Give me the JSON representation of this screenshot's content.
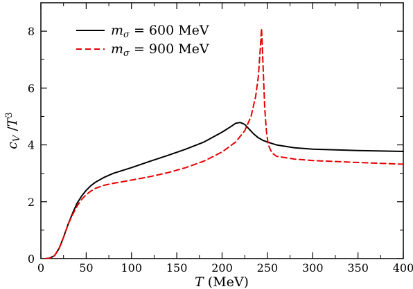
{
  "chart_data": {
    "type": "line",
    "title": "",
    "xlabel": "T (MeV)",
    "ylabel": "c_V / T^3",
    "xlim": [
      0,
      400
    ],
    "ylim": [
      0,
      9
    ],
    "x_ticks": [
      0,
      50,
      100,
      150,
      200,
      250,
      300,
      350,
      400
    ],
    "y_ticks": [
      0,
      2,
      4,
      6,
      8
    ],
    "grid": false,
    "legend_position": "top-left",
    "series": [
      {
        "name": "m_σ = 600 MeV",
        "color": "#000000",
        "style": "solid",
        "points": [
          [
            5,
            0
          ],
          [
            10,
            0.02
          ],
          [
            15,
            0.1
          ],
          [
            20,
            0.35
          ],
          [
            25,
            0.75
          ],
          [
            30,
            1.2
          ],
          [
            35,
            1.6
          ],
          [
            40,
            1.95
          ],
          [
            45,
            2.2
          ],
          [
            50,
            2.4
          ],
          [
            55,
            2.56
          ],
          [
            60,
            2.68
          ],
          [
            70,
            2.86
          ],
          [
            80,
            3.0
          ],
          [
            100,
            3.2
          ],
          [
            120,
            3.42
          ],
          [
            140,
            3.63
          ],
          [
            160,
            3.85
          ],
          [
            180,
            4.1
          ],
          [
            200,
            4.45
          ],
          [
            210,
            4.65
          ],
          [
            215,
            4.76
          ],
          [
            220,
            4.79
          ],
          [
            225,
            4.72
          ],
          [
            230,
            4.55
          ],
          [
            235,
            4.38
          ],
          [
            240,
            4.25
          ],
          [
            245,
            4.16
          ],
          [
            250,
            4.1
          ],
          [
            260,
            4.0
          ],
          [
            280,
            3.9
          ],
          [
            300,
            3.85
          ],
          [
            350,
            3.8
          ],
          [
            400,
            3.77
          ]
        ]
      },
      {
        "name": "m_σ = 900 MeV",
        "color": "#e60000",
        "style": "dashed",
        "points": [
          [
            5,
            0
          ],
          [
            10,
            0.02
          ],
          [
            15,
            0.1
          ],
          [
            20,
            0.35
          ],
          [
            25,
            0.75
          ],
          [
            30,
            1.2
          ],
          [
            35,
            1.55
          ],
          [
            40,
            1.85
          ],
          [
            45,
            2.08
          ],
          [
            50,
            2.25
          ],
          [
            55,
            2.37
          ],
          [
            60,
            2.47
          ],
          [
            70,
            2.58
          ],
          [
            80,
            2.65
          ],
          [
            100,
            2.76
          ],
          [
            120,
            2.88
          ],
          [
            140,
            3.02
          ],
          [
            160,
            3.2
          ],
          [
            180,
            3.43
          ],
          [
            200,
            3.75
          ],
          [
            215,
            4.1
          ],
          [
            225,
            4.5
          ],
          [
            232,
            5.0
          ],
          [
            237,
            5.7
          ],
          [
            240,
            6.4
          ],
          [
            242,
            7.3
          ],
          [
            243.5,
            8.1
          ],
          [
            245,
            7.0
          ],
          [
            247,
            5.3
          ],
          [
            249,
            4.45
          ],
          [
            251,
            4.0
          ],
          [
            255,
            3.72
          ],
          [
            260,
            3.6
          ],
          [
            280,
            3.5
          ],
          [
            300,
            3.45
          ],
          [
            350,
            3.38
          ],
          [
            400,
            3.32
          ]
        ]
      }
    ]
  }
}
